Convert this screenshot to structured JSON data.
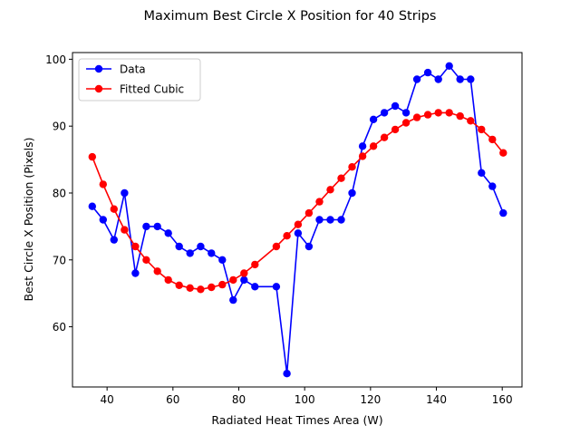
{
  "chart_data": {
    "type": "line",
    "title": "Maximum Best Circle X Position for 40 Strips",
    "xlabel": "Radiated Heat Times Area (W)",
    "ylabel": "Best Circle X Position (Pixels)",
    "xlim": [
      29.5,
      166
    ],
    "ylim": [
      51,
      101
    ],
    "xticks": [
      40,
      60,
      80,
      100,
      120,
      140,
      160
    ],
    "yticks": [
      60,
      70,
      80,
      90,
      100
    ],
    "grid": false,
    "legend_position": "top-left",
    "series": [
      {
        "name": "Data",
        "color": "#0000ff",
        "x": [
          35.5,
          38.8,
          42.1,
          45.3,
          48.6,
          51.9,
          55.3,
          58.6,
          61.9,
          65.2,
          68.4,
          71.7,
          75.0,
          78.3,
          81.6,
          84.9,
          91.4,
          94.6,
          98.0,
          101.3,
          104.5,
          107.8,
          111.1,
          114.4,
          117.6,
          120.9,
          124.2,
          127.5,
          130.8,
          134.1,
          137.4,
          140.6,
          143.9,
          147.2,
          150.4,
          153.7,
          157.0,
          160.3
        ],
        "y": [
          78,
          76,
          73,
          80,
          68,
          75,
          75,
          74,
          72,
          71,
          72,
          71,
          70,
          64,
          67,
          66,
          66,
          53,
          74,
          72,
          76,
          76,
          76,
          80,
          87,
          91,
          92,
          93,
          92,
          97,
          98,
          97,
          99,
          97,
          97,
          83,
          81,
          77
        ]
      },
      {
        "name": "Fitted Cubic",
        "color": "#ff0000",
        "x": [
          35.5,
          38.8,
          42.1,
          45.3,
          48.6,
          51.9,
          55.3,
          58.6,
          61.9,
          65.2,
          68.4,
          71.7,
          75.0,
          78.3,
          81.6,
          84.9,
          91.4,
          94.6,
          98.0,
          101.3,
          104.5,
          107.8,
          111.1,
          114.4,
          117.6,
          120.9,
          124.2,
          127.5,
          130.8,
          134.1,
          137.4,
          140.6,
          143.9,
          147.2,
          150.4,
          153.7,
          157.0,
          160.3
        ],
        "y": [
          85.4,
          81.3,
          77.6,
          74.5,
          72.0,
          70.0,
          68.3,
          67.0,
          66.2,
          65.8,
          65.6,
          65.9,
          66.3,
          67.0,
          68.0,
          69.3,
          72.0,
          73.6,
          75.3,
          77.0,
          78.7,
          80.5,
          82.2,
          83.9,
          85.5,
          87.0,
          88.3,
          89.5,
          90.5,
          91.3,
          91.7,
          92.0,
          92.0,
          91.5,
          90.8,
          89.5,
          88.0,
          86.0
        ]
      }
    ]
  }
}
